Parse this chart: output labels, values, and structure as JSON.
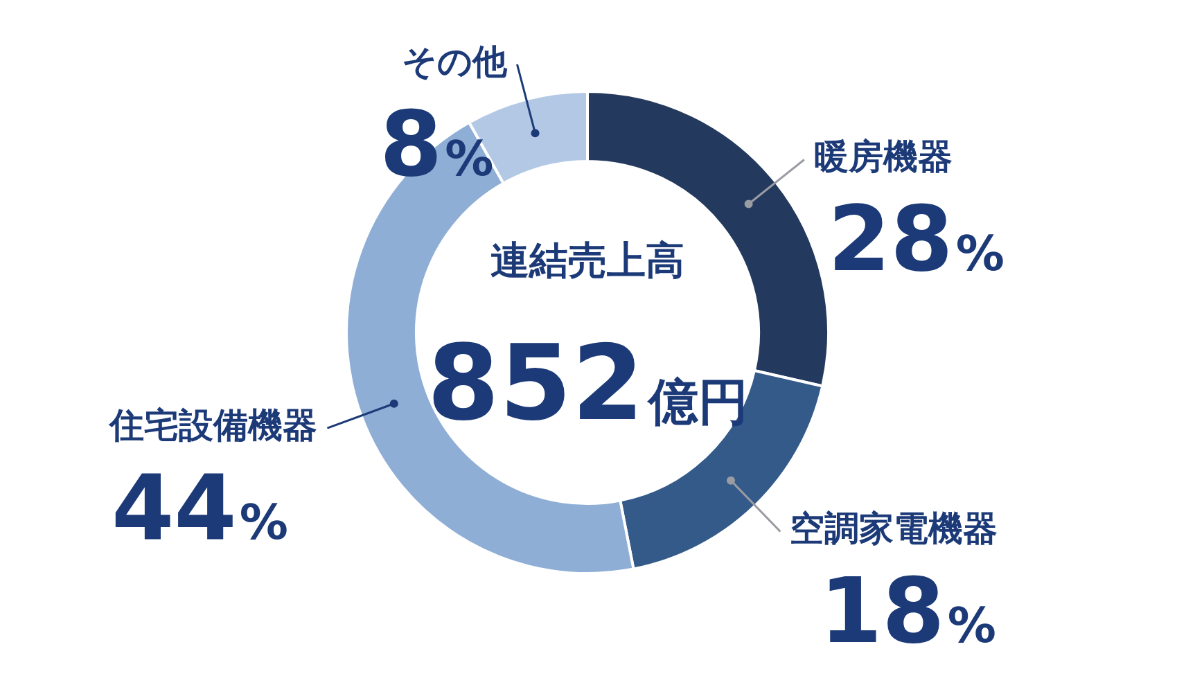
{
  "chart_data": {
    "type": "donut",
    "categories": [
      "暖房機器",
      "空調家電機器",
      "住宅設備機器",
      "その他"
    ],
    "values": [
      28,
      18,
      44,
      8
    ],
    "colors": [
      "#233a5e",
      "#345a8a",
      "#8faed6",
      "#b3c8e4"
    ],
    "value_labels": [
      "28%",
      "18%",
      "44%",
      "8%"
    ],
    "annotations": [
      "連結売上高",
      "852億円"
    ]
  }
}
